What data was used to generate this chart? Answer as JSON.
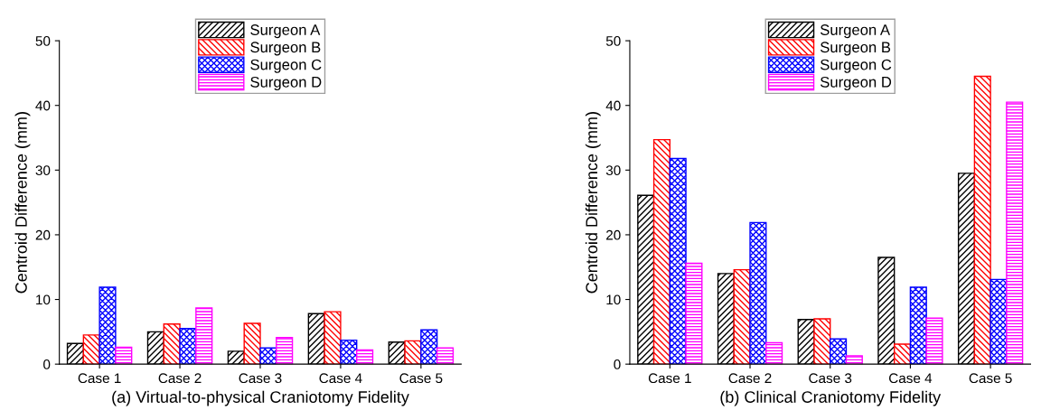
{
  "chart_data": [
    {
      "type": "bar",
      "xlabel": "(a) Virtual-to-physical Craniotomy Fidelity",
      "ylabel": "Centroid Difference (mm)",
      "categories": [
        "Case 1",
        "Case 2",
        "Case 3",
        "Case 4",
        "Case 5"
      ],
      "ylim": [
        0,
        50
      ],
      "yticks": [
        0,
        10,
        20,
        30,
        40,
        50
      ],
      "grid": false,
      "legend": "top",
      "series": [
        {
          "name": "Surgeon A",
          "color": "#000000",
          "values": [
            3.2,
            5.0,
            2.0,
            7.8,
            3.4
          ]
        },
        {
          "name": "Surgeon B",
          "color": "#ff0000",
          "values": [
            4.5,
            6.2,
            6.3,
            8.1,
            3.6
          ]
        },
        {
          "name": "Surgeon C",
          "color": "#0000ff",
          "values": [
            11.9,
            5.5,
            2.5,
            3.7,
            5.3
          ]
        },
        {
          "name": "Surgeon D",
          "color": "#ff00ff",
          "values": [
            2.6,
            8.7,
            4.1,
            2.2,
            2.5
          ]
        }
      ]
    },
    {
      "type": "bar",
      "xlabel": "(b) Clinical Craniotomy Fidelity",
      "ylabel": "Centroid Difference (mm)",
      "categories": [
        "Case 1",
        "Case 2",
        "Case 3",
        "Case 4",
        "Case 5"
      ],
      "ylim": [
        0,
        50
      ],
      "yticks": [
        0,
        10,
        20,
        30,
        40,
        50
      ],
      "grid": false,
      "legend": "top",
      "series": [
        {
          "name": "Surgeon A",
          "color": "#000000",
          "values": [
            26.1,
            14.0,
            6.9,
            16.5,
            29.5
          ]
        },
        {
          "name": "Surgeon B",
          "color": "#ff0000",
          "values": [
            34.7,
            14.6,
            7.0,
            3.1,
            44.5
          ]
        },
        {
          "name": "Surgeon C",
          "color": "#0000ff",
          "values": [
            31.8,
            21.9,
            3.9,
            11.9,
            13.1
          ]
        },
        {
          "name": "Surgeon D",
          "color": "#ff00ff",
          "values": [
            15.6,
            3.3,
            1.3,
            7.1,
            40.5
          ]
        }
      ]
    }
  ]
}
